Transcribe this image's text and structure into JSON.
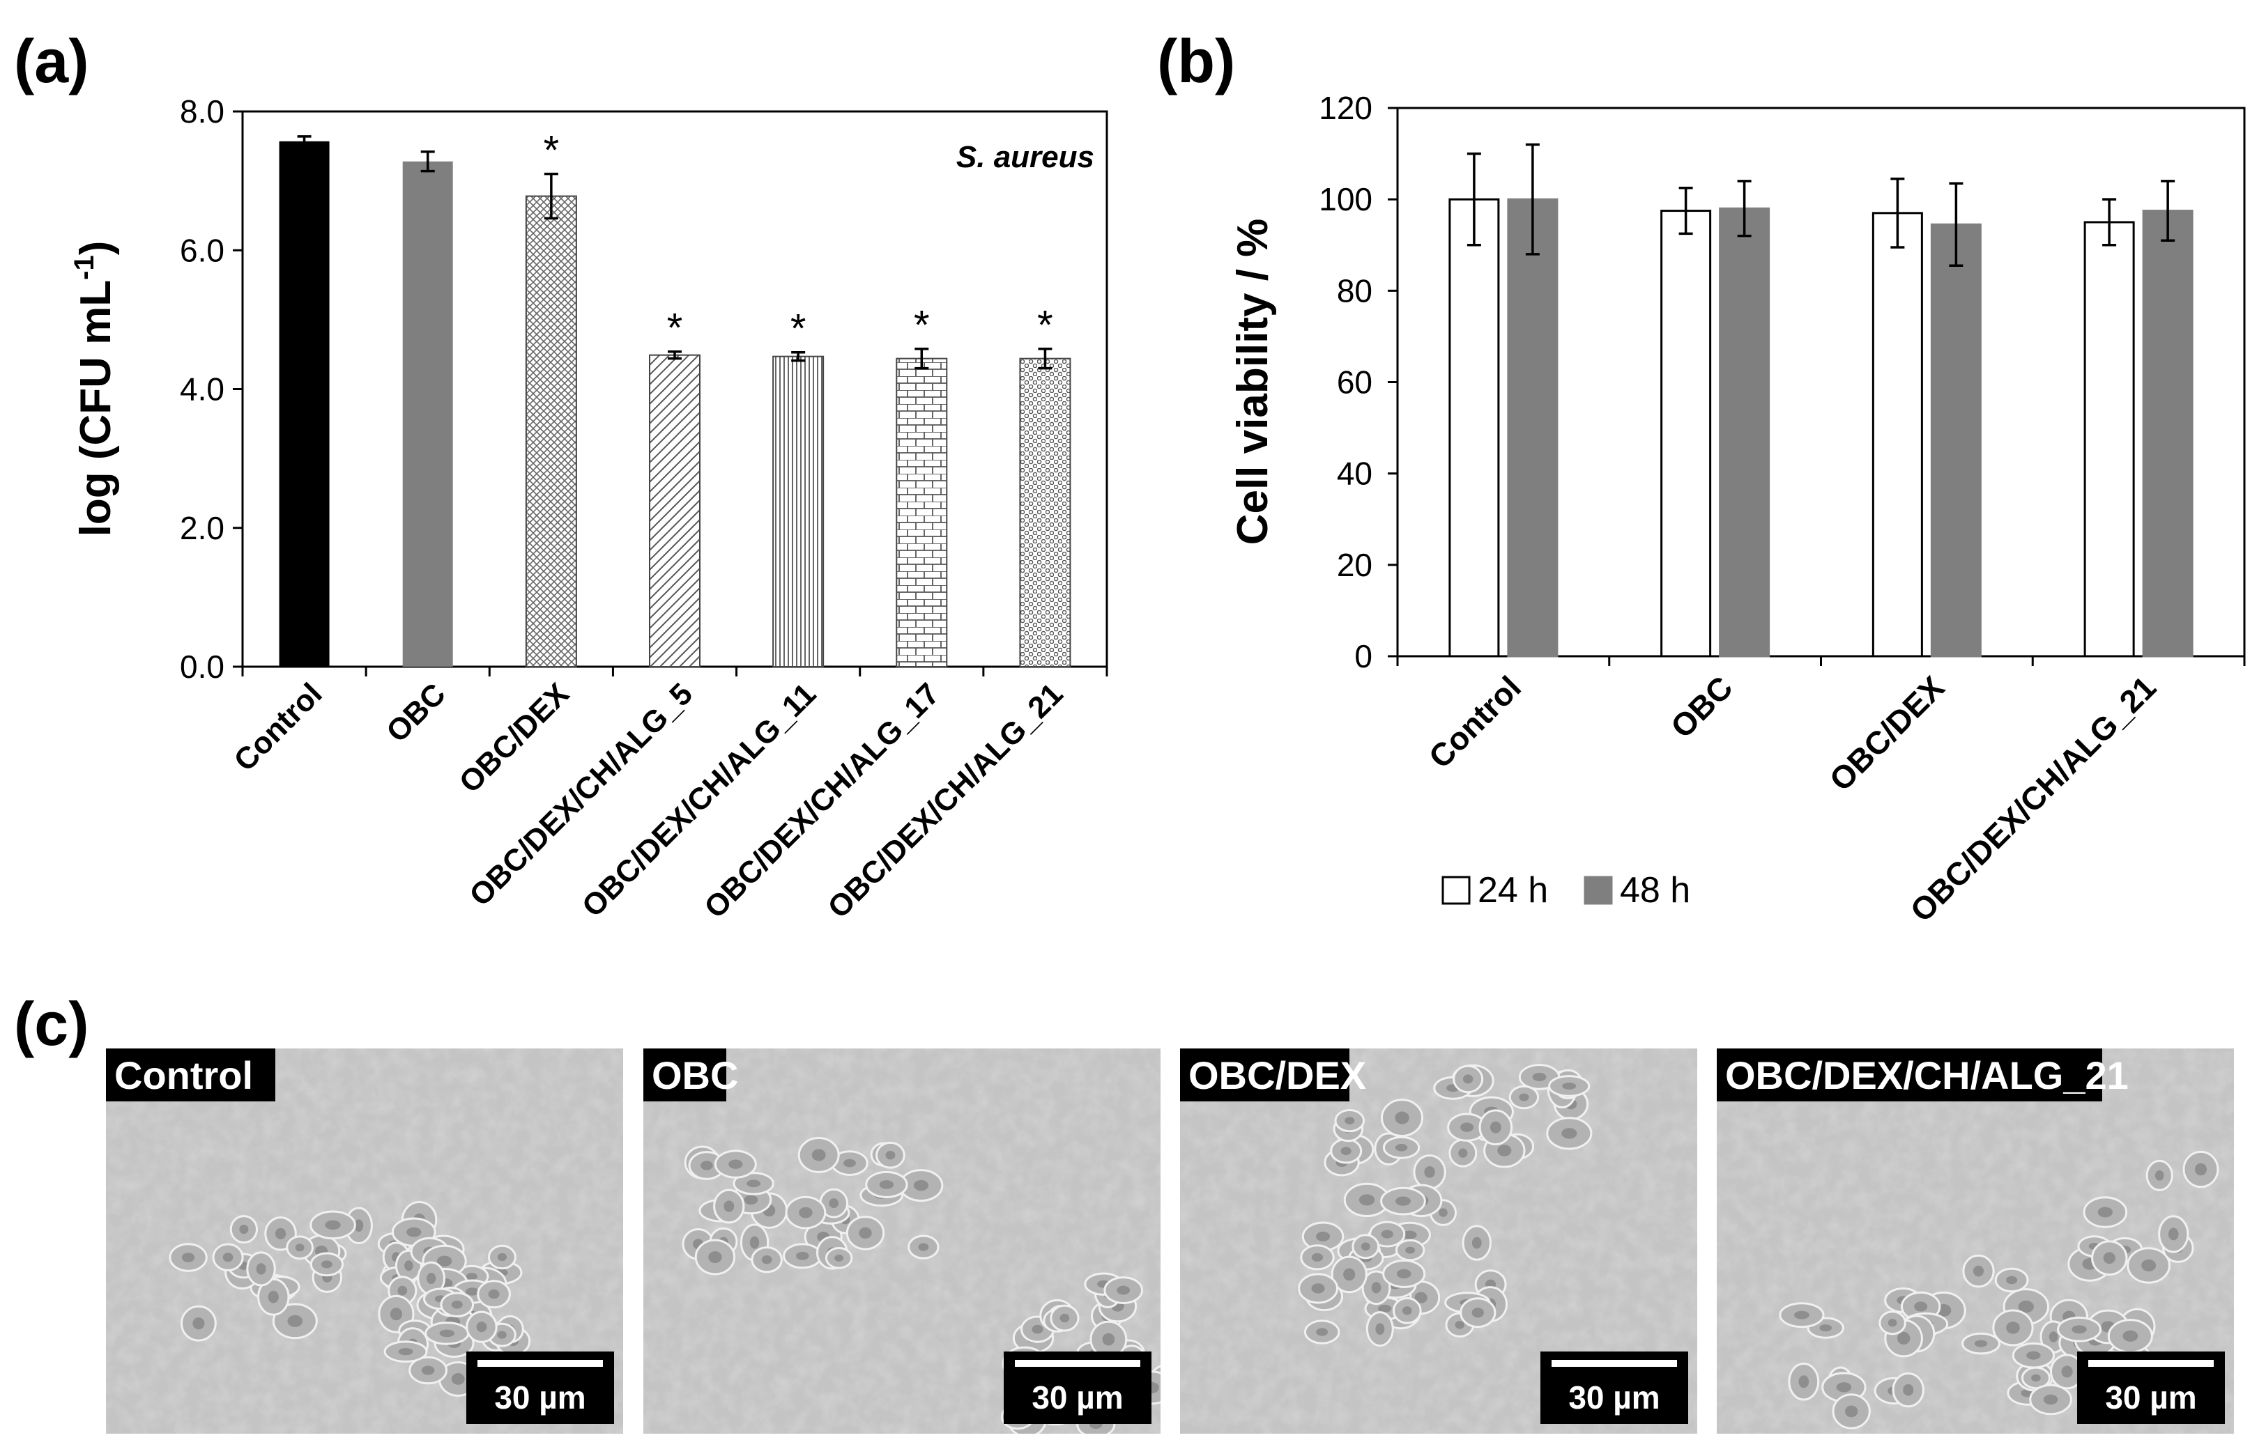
{
  "panels": {
    "a": {
      "label": "(a)"
    },
    "b": {
      "label": "(b)"
    },
    "c": {
      "label": "(c)"
    }
  },
  "chart_data": [
    {
      "id": "a",
      "type": "bar",
      "title": "",
      "annotation": "S. aureus",
      "xlabel": "",
      "ylabel": "log (CFU mL",
      "ylabel_sup": "-1",
      "ylabel_close": ")",
      "ylim": [
        0,
        8
      ],
      "yticks": [
        "0.0",
        "2.0",
        "4.0",
        "6.0",
        "8.0"
      ],
      "categories": [
        "Control",
        "OBC",
        "OBC/DEX",
        "OBC/DEX/CH/ALG_5",
        "OBC/DEX/CH/ALG_11",
        "OBC/DEX/CH/ALG_17",
        "OBC/DEX/CH/ALG_21"
      ],
      "values": [
        7.57,
        7.28,
        6.78,
        4.49,
        4.47,
        4.44,
        4.44
      ],
      "errors": [
        0.07,
        0.14,
        0.32,
        0.05,
        0.06,
        0.14,
        0.14
      ],
      "significance": [
        "",
        "",
        "*",
        "*",
        "*",
        "*",
        "*"
      ],
      "fills": [
        "solid-black",
        "solid-gray",
        "crosshatch",
        "diagonal",
        "vertical",
        "brick",
        "dots"
      ],
      "colors": {
        "black": "#000000",
        "gray": "#7f7f7f"
      }
    },
    {
      "id": "b",
      "type": "bar",
      "title": "",
      "xlabel": "",
      "ylabel": "Cell viability / %",
      "ylim": [
        0,
        120
      ],
      "yticks": [
        "0",
        "20",
        "40",
        "60",
        "80",
        "100",
        "120"
      ],
      "categories": [
        "Control",
        "OBC",
        "OBC/DEX",
        "OBC/DEX/CH/ALG_21"
      ],
      "series": [
        {
          "name": "24 h",
          "color": "#ffffff",
          "values": [
            100,
            97.5,
            97,
            95
          ],
          "errors": [
            10,
            5,
            7.5,
            5
          ]
        },
        {
          "name": "48 h",
          "color": "#7f7f7f",
          "values": [
            100,
            98,
            94.5,
            97.5
          ],
          "errors": [
            12,
            6,
            9,
            6.5
          ]
        }
      ],
      "legend_position": "bottom"
    }
  ],
  "micrographs": [
    {
      "label": "Control",
      "scale_bar": "30 µm"
    },
    {
      "label": "OBC",
      "scale_bar": "30 µm"
    },
    {
      "label": "OBC/DEX",
      "scale_bar": "30 µm"
    },
    {
      "label": "OBC/DEX/CH/ALG_21",
      "scale_bar": "30 µm"
    }
  ]
}
